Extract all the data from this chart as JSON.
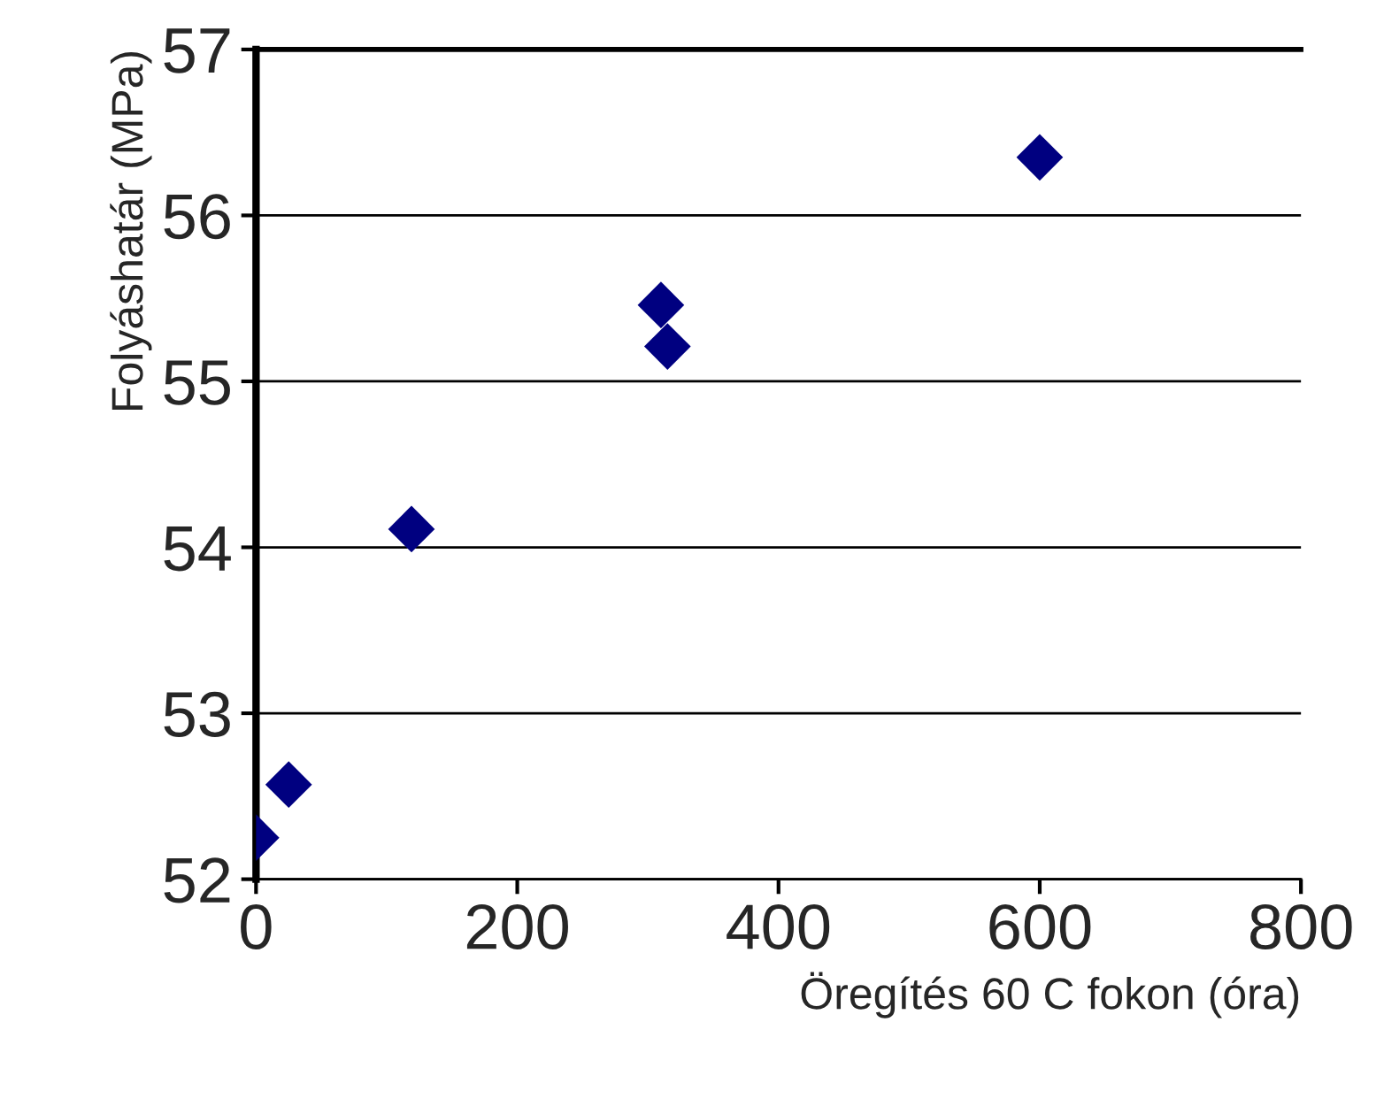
{
  "chart_data": {
    "type": "scatter",
    "xlabel": "Öregítés 60 C fokon (óra)",
    "ylabel": "Folyáshatár (MPa)",
    "x": [
      0,
      25,
      119,
      310,
      315,
      600
    ],
    "series": [
      {
        "color": "#000080",
        "values": [
          52.25,
          52.57,
          54.11,
          55.46,
          55.21,
          56.35
        ]
      }
    ],
    "xlim": [
      0,
      800
    ],
    "xticks": [
      0,
      200,
      400,
      600,
      800
    ],
    "ylim": [
      52,
      57
    ],
    "yticks": [
      52,
      53,
      54,
      55,
      56,
      57
    ],
    "grid": "y",
    "marker": "diamond",
    "legend": false
  }
}
